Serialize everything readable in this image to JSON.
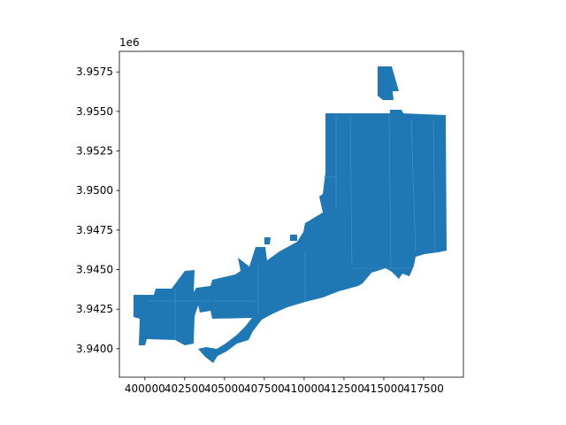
{
  "figure": {
    "face_color": "#ffffff",
    "polygon_color": "#1f77b4",
    "boundary_color": "#5a9bd0"
  },
  "chart_data": {
    "type": "map",
    "geometry": "choropleth-style polygons (single uniform fill)",
    "title": "",
    "xlabel": "",
    "ylabel": "",
    "x_ticks": [
      "400000",
      "402500",
      "405000",
      "407500",
      "410000",
      "412500",
      "415000",
      "417500"
    ],
    "x_tick_values": [
      400000,
      402500,
      405000,
      407500,
      410000,
      412500,
      415000,
      417500
    ],
    "y_ticks": [
      "3.9400",
      "3.9425",
      "3.9450",
      "3.9475",
      "3.9500",
      "3.9525",
      "3.9550",
      "3.9575"
    ],
    "y_tick_values": [
      3.94,
      3.9425,
      3.945,
      3.9475,
      3.95,
      3.9525,
      3.955,
      3.9575
    ],
    "y_offset_label": "1e6",
    "xlim": [
      398400,
      420000
    ],
    "ylim": [
      3.9382,
      3.9588
    ],
    "grid": false
  }
}
